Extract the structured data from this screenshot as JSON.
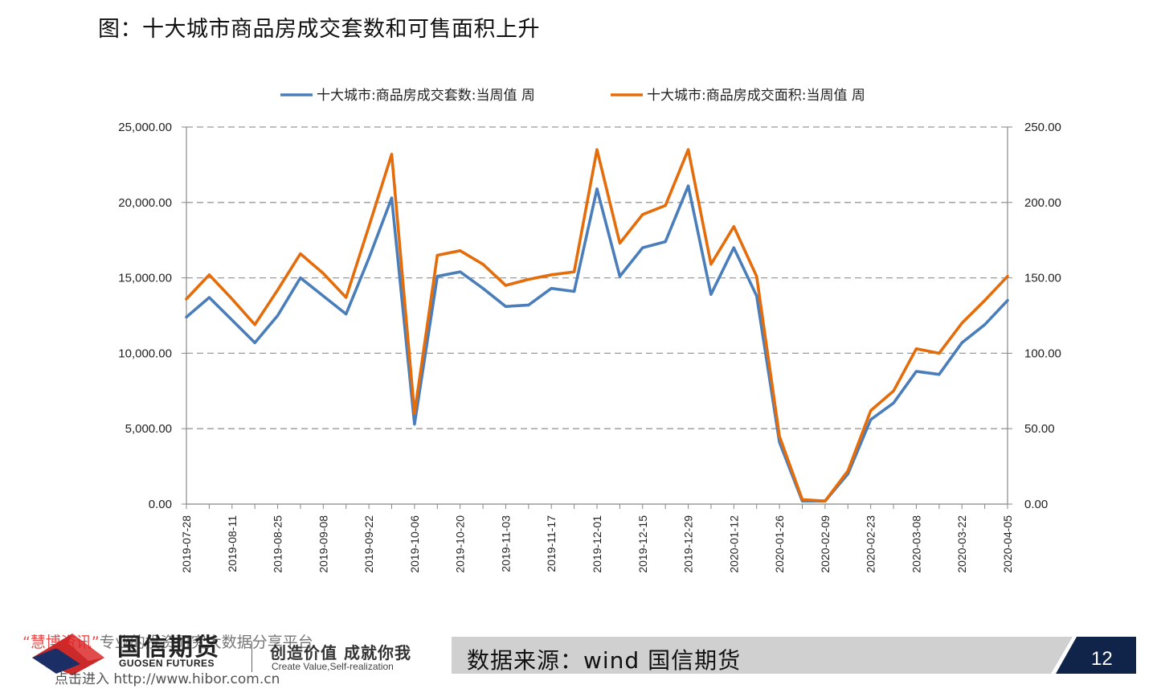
{
  "title": "图：十大城市商品房成交套数和可售面积上升",
  "chart_data": {
    "type": "line",
    "x": [
      "2019-07-28",
      "2019-08-04",
      "2019-08-11",
      "2019-08-18",
      "2019-08-25",
      "2019-09-01",
      "2019-09-08",
      "2019-09-15",
      "2019-09-22",
      "2019-09-29",
      "2019-10-06",
      "2019-10-13",
      "2019-10-20",
      "2019-10-27",
      "2019-11-03",
      "2019-11-10",
      "2019-11-17",
      "2019-11-24",
      "2019-12-01",
      "2019-12-08",
      "2019-12-15",
      "2019-12-22",
      "2019-12-29",
      "2020-01-05",
      "2020-01-12",
      "2020-01-19",
      "2020-01-26",
      "2020-02-02",
      "2020-02-09",
      "2020-02-16",
      "2020-02-23",
      "2020-03-01",
      "2020-03-08",
      "2020-03-15",
      "2020-03-22",
      "2020-03-29",
      "2020-04-05"
    ],
    "x_tick_labels": [
      "2019-07-28",
      "2019-08-11",
      "2019-08-25",
      "2019-09-08",
      "2019-09-22",
      "2019-10-06",
      "2019-10-20",
      "2019-11-03",
      "2019-11-17",
      "2019-12-01",
      "2019-12-15",
      "2019-12-29",
      "2020-01-12",
      "2020-01-26",
      "2020-02-09",
      "2020-02-23",
      "2020-03-08",
      "2020-03-22",
      "2020-04-05"
    ],
    "series": [
      {
        "name": "十大城市:商品房成交套数:当周值 周",
        "axis": "left",
        "color": "#4a7ebb",
        "values": [
          12400,
          13700,
          12200,
          10700,
          12500,
          15000,
          13800,
          12600,
          16300,
          20300,
          5300,
          15100,
          15400,
          14300,
          13100,
          13200,
          14300,
          14100,
          20900,
          15100,
          17000,
          17400,
          21100,
          13900,
          17000,
          13800,
          4100,
          200,
          200,
          2000,
          5600,
          6700,
          8800,
          8600,
          10700,
          11900,
          13500
        ]
      },
      {
        "name": "十大城市:商品房成交面积:当周值 周",
        "axis": "right",
        "color": "#e46c0a",
        "values": [
          136,
          152,
          136,
          119,
          142,
          166,
          153,
          137,
          184,
          232,
          60,
          165,
          168,
          159,
          145,
          149,
          152,
          154,
          235,
          173,
          192,
          198,
          235,
          159,
          184,
          151,
          45,
          3,
          2,
          22,
          62,
          75,
          103,
          100,
          120,
          135,
          151
        ]
      }
    ],
    "y_left": {
      "min": 0,
      "max": 25000,
      "ticks": [
        "0.00",
        "5,000.00",
        "10,000.00",
        "15,000.00",
        "20,000.00",
        "25,000.00"
      ]
    },
    "y_right": {
      "min": 0,
      "max": 250,
      "ticks": [
        "0.00",
        "50.00",
        "100.00",
        "150.00",
        "200.00",
        "250.00"
      ]
    },
    "grid": true,
    "legend_position": "top"
  },
  "footer": {
    "watermark_top_quote": "“慧博资讯”",
    "watermark_top_rest": "专业的投资研究大数据分享平台",
    "watermark_bottom": "点击进入 http://www.hibor.com.cn",
    "brand_cn": "国信期货",
    "brand_en": "GUOSEN FUTURES",
    "slogan_cn": "创造价值  成就你我",
    "slogan_en": "Create Value,Self-realization",
    "source": "数据来源：wind 国信期货",
    "page_number": "12",
    "bar_color": "#d0d0d0",
    "page_box_color": "#10244a"
  }
}
